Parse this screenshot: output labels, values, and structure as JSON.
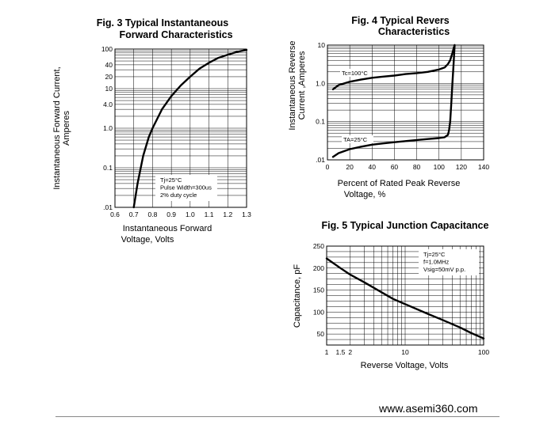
{
  "footer": {
    "url": "www.asemi360.com"
  },
  "chart_data": [
    {
      "id": "fig3",
      "type": "line",
      "title_lines": [
        "Fig. 3 Typical Instantaneous",
        "Forward Characteristics"
      ],
      "xlabel_lines": [
        "Instantaneous Forward",
        "Voltage, Volts"
      ],
      "ylabel_lines": [
        "Instantaneous Forward Current,",
        "Amperes"
      ],
      "xscale": "linear",
      "yscale": "log",
      "xlim": [
        0.6,
        1.3
      ],
      "ylim": [
        0.01,
        100
      ],
      "xticks": [
        "0.6",
        "0.7",
        "0.8",
        "0.9",
        "1.0",
        "1.1",
        "1.2",
        "1.3"
      ],
      "yticks": [
        "100",
        "40",
        "20",
        "10",
        "4.0",
        "1.0",
        "0.1",
        ".01"
      ],
      "grid": true,
      "annotation_lines": [
        "Tj=25°C",
        "Pulse Width=300us",
        "2% duty cycle"
      ],
      "series": [
        {
          "x": [
            0.7,
            0.72,
            0.75,
            0.78,
            0.8,
            0.85,
            0.9,
            0.95,
            1.0,
            1.05,
            1.1,
            1.15,
            1.2,
            1.25,
            1.3
          ],
          "y": [
            0.01,
            0.04,
            0.2,
            0.6,
            1.0,
            3.0,
            6.5,
            12,
            20,
            32,
            45,
            60,
            72,
            85,
            95
          ]
        }
      ]
    },
    {
      "id": "fig4",
      "type": "line",
      "title_lines": [
        "Fig. 4 Typical Revers",
        "Characteristics"
      ],
      "xlabel_lines": [
        "Percent of Rated Peak Reverse",
        "Voltage, %"
      ],
      "ylabel_lines": [
        "Instantaneous Reverse",
        "Current ,Amperes"
      ],
      "xscale": "linear",
      "yscale": "log",
      "xlim": [
        0,
        140
      ],
      "ylim": [
        0.01,
        10
      ],
      "xticks": [
        "0",
        "20",
        "40",
        "60",
        "80",
        "100",
        "120",
        "140"
      ],
      "yticks": [
        "10",
        "1.0",
        "0.1",
        ".01"
      ],
      "grid": true,
      "series": [
        {
          "name": "Tc=100°C",
          "x": [
            5,
            10,
            20,
            30,
            40,
            50,
            60,
            70,
            80,
            90,
            100,
            105,
            108,
            110,
            111,
            112,
            113,
            114
          ],
          "y": [
            0.7,
            0.9,
            1.1,
            1.25,
            1.4,
            1.5,
            1.6,
            1.75,
            1.85,
            2.0,
            2.3,
            2.6,
            3.2,
            4.0,
            5.0,
            6.2,
            8.0,
            10
          ]
        },
        {
          "name": "TA=25°C",
          "x": [
            5,
            10,
            20,
            30,
            40,
            50,
            60,
            70,
            80,
            90,
            100,
            105,
            108,
            109,
            110,
            111,
            112,
            113,
            114
          ],
          "y": [
            0.012,
            0.015,
            0.019,
            0.022,
            0.025,
            0.027,
            0.029,
            0.031,
            0.033,
            0.035,
            0.037,
            0.039,
            0.045,
            0.06,
            0.1,
            0.3,
            1.0,
            3.0,
            10
          ]
        }
      ]
    },
    {
      "id": "fig5",
      "type": "line",
      "title_lines": [
        "Fig. 5 Typical Junction Capacitance"
      ],
      "xlabel_lines": [
        "Reverse Voltage, Volts"
      ],
      "ylabel_lines": [
        "Capacitance, pF"
      ],
      "xscale": "log",
      "yscale": "linear",
      "xlim": [
        1,
        100
      ],
      "ylim": [
        25,
        250
      ],
      "xticks": [
        "1",
        "1.5",
        "2",
        "10",
        "100"
      ],
      "yticks": [
        "250",
        "200",
        "150",
        "100",
        "50"
      ],
      "grid": true,
      "annotation_lines": [
        "Tj=25°C",
        "f=1.0MHz",
        "Vsig=50mV p.p."
      ],
      "series": [
        {
          "x": [
            1,
            1.5,
            2,
            3,
            5,
            7,
            10,
            20,
            30,
            50,
            70,
            100
          ],
          "y": [
            222,
            200,
            185,
            168,
            145,
            130,
            118,
            95,
            82,
            65,
            52,
            40
          ]
        }
      ]
    }
  ]
}
